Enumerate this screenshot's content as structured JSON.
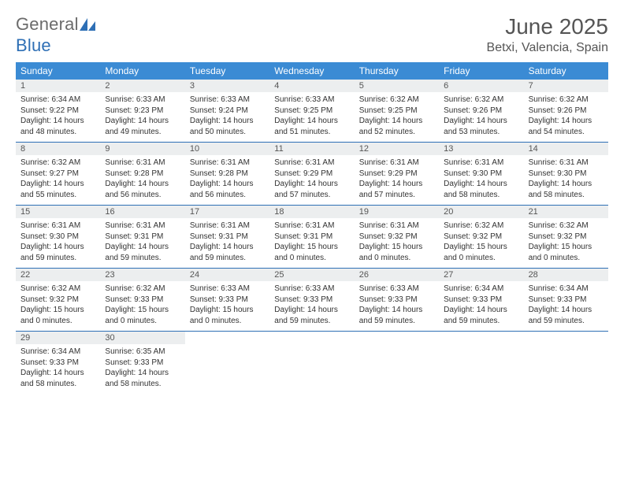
{
  "logo": {
    "text1": "General",
    "text2": "Blue"
  },
  "title": "June 2025",
  "location": "Betxi, Valencia, Spain",
  "colors": {
    "header_bg": "#3b8bd4",
    "header_text": "#ffffff",
    "rule": "#2e6fb5",
    "daynum_bg": "#eceeef",
    "text": "#333333",
    "logo_gray": "#6b6b6b",
    "logo_blue": "#2e6fb5"
  },
  "weekdays": [
    "Sunday",
    "Monday",
    "Tuesday",
    "Wednesday",
    "Thursday",
    "Friday",
    "Saturday"
  ],
  "weeks": [
    [
      {
        "n": "1",
        "sr": "Sunrise: 6:34 AM",
        "ss": "Sunset: 9:22 PM",
        "d1": "Daylight: 14 hours",
        "d2": "and 48 minutes."
      },
      {
        "n": "2",
        "sr": "Sunrise: 6:33 AM",
        "ss": "Sunset: 9:23 PM",
        "d1": "Daylight: 14 hours",
        "d2": "and 49 minutes."
      },
      {
        "n": "3",
        "sr": "Sunrise: 6:33 AM",
        "ss": "Sunset: 9:24 PM",
        "d1": "Daylight: 14 hours",
        "d2": "and 50 minutes."
      },
      {
        "n": "4",
        "sr": "Sunrise: 6:33 AM",
        "ss": "Sunset: 9:25 PM",
        "d1": "Daylight: 14 hours",
        "d2": "and 51 minutes."
      },
      {
        "n": "5",
        "sr": "Sunrise: 6:32 AM",
        "ss": "Sunset: 9:25 PM",
        "d1": "Daylight: 14 hours",
        "d2": "and 52 minutes."
      },
      {
        "n": "6",
        "sr": "Sunrise: 6:32 AM",
        "ss": "Sunset: 9:26 PM",
        "d1": "Daylight: 14 hours",
        "d2": "and 53 minutes."
      },
      {
        "n": "7",
        "sr": "Sunrise: 6:32 AM",
        "ss": "Sunset: 9:26 PM",
        "d1": "Daylight: 14 hours",
        "d2": "and 54 minutes."
      }
    ],
    [
      {
        "n": "8",
        "sr": "Sunrise: 6:32 AM",
        "ss": "Sunset: 9:27 PM",
        "d1": "Daylight: 14 hours",
        "d2": "and 55 minutes."
      },
      {
        "n": "9",
        "sr": "Sunrise: 6:31 AM",
        "ss": "Sunset: 9:28 PM",
        "d1": "Daylight: 14 hours",
        "d2": "and 56 minutes."
      },
      {
        "n": "10",
        "sr": "Sunrise: 6:31 AM",
        "ss": "Sunset: 9:28 PM",
        "d1": "Daylight: 14 hours",
        "d2": "and 56 minutes."
      },
      {
        "n": "11",
        "sr": "Sunrise: 6:31 AM",
        "ss": "Sunset: 9:29 PM",
        "d1": "Daylight: 14 hours",
        "d2": "and 57 minutes."
      },
      {
        "n": "12",
        "sr": "Sunrise: 6:31 AM",
        "ss": "Sunset: 9:29 PM",
        "d1": "Daylight: 14 hours",
        "d2": "and 57 minutes."
      },
      {
        "n": "13",
        "sr": "Sunrise: 6:31 AM",
        "ss": "Sunset: 9:30 PM",
        "d1": "Daylight: 14 hours",
        "d2": "and 58 minutes."
      },
      {
        "n": "14",
        "sr": "Sunrise: 6:31 AM",
        "ss": "Sunset: 9:30 PM",
        "d1": "Daylight: 14 hours",
        "d2": "and 58 minutes."
      }
    ],
    [
      {
        "n": "15",
        "sr": "Sunrise: 6:31 AM",
        "ss": "Sunset: 9:30 PM",
        "d1": "Daylight: 14 hours",
        "d2": "and 59 minutes."
      },
      {
        "n": "16",
        "sr": "Sunrise: 6:31 AM",
        "ss": "Sunset: 9:31 PM",
        "d1": "Daylight: 14 hours",
        "d2": "and 59 minutes."
      },
      {
        "n": "17",
        "sr": "Sunrise: 6:31 AM",
        "ss": "Sunset: 9:31 PM",
        "d1": "Daylight: 14 hours",
        "d2": "and 59 minutes."
      },
      {
        "n": "18",
        "sr": "Sunrise: 6:31 AM",
        "ss": "Sunset: 9:31 PM",
        "d1": "Daylight: 15 hours",
        "d2": "and 0 minutes."
      },
      {
        "n": "19",
        "sr": "Sunrise: 6:31 AM",
        "ss": "Sunset: 9:32 PM",
        "d1": "Daylight: 15 hours",
        "d2": "and 0 minutes."
      },
      {
        "n": "20",
        "sr": "Sunrise: 6:32 AM",
        "ss": "Sunset: 9:32 PM",
        "d1": "Daylight: 15 hours",
        "d2": "and 0 minutes."
      },
      {
        "n": "21",
        "sr": "Sunrise: 6:32 AM",
        "ss": "Sunset: 9:32 PM",
        "d1": "Daylight: 15 hours",
        "d2": "and 0 minutes."
      }
    ],
    [
      {
        "n": "22",
        "sr": "Sunrise: 6:32 AM",
        "ss": "Sunset: 9:32 PM",
        "d1": "Daylight: 15 hours",
        "d2": "and 0 minutes."
      },
      {
        "n": "23",
        "sr": "Sunrise: 6:32 AM",
        "ss": "Sunset: 9:33 PM",
        "d1": "Daylight: 15 hours",
        "d2": "and 0 minutes."
      },
      {
        "n": "24",
        "sr": "Sunrise: 6:33 AM",
        "ss": "Sunset: 9:33 PM",
        "d1": "Daylight: 15 hours",
        "d2": "and 0 minutes."
      },
      {
        "n": "25",
        "sr": "Sunrise: 6:33 AM",
        "ss": "Sunset: 9:33 PM",
        "d1": "Daylight: 14 hours",
        "d2": "and 59 minutes."
      },
      {
        "n": "26",
        "sr": "Sunrise: 6:33 AM",
        "ss": "Sunset: 9:33 PM",
        "d1": "Daylight: 14 hours",
        "d2": "and 59 minutes."
      },
      {
        "n": "27",
        "sr": "Sunrise: 6:34 AM",
        "ss": "Sunset: 9:33 PM",
        "d1": "Daylight: 14 hours",
        "d2": "and 59 minutes."
      },
      {
        "n": "28",
        "sr": "Sunrise: 6:34 AM",
        "ss": "Sunset: 9:33 PM",
        "d1": "Daylight: 14 hours",
        "d2": "and 59 minutes."
      }
    ],
    [
      {
        "n": "29",
        "sr": "Sunrise: 6:34 AM",
        "ss": "Sunset: 9:33 PM",
        "d1": "Daylight: 14 hours",
        "d2": "and 58 minutes."
      },
      {
        "n": "30",
        "sr": "Sunrise: 6:35 AM",
        "ss": "Sunset: 9:33 PM",
        "d1": "Daylight: 14 hours",
        "d2": "and 58 minutes."
      },
      null,
      null,
      null,
      null,
      null
    ]
  ]
}
